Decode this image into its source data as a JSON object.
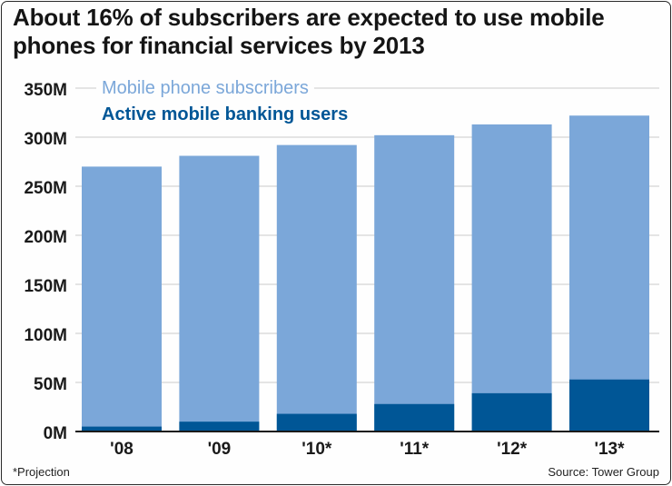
{
  "title": "About 16% of subscribers are expected to use mobile phones for financial services by 2013",
  "footnote": "*Projection",
  "source": "Source: Tower Group",
  "colors": {
    "subscribers": "#7ba7d9",
    "banking": "#005696",
    "gridline": "#c9c9c9",
    "text": "#1a1a1a"
  },
  "chart_data": {
    "type": "bar",
    "stacking": "overlaid",
    "categories": [
      "'08",
      "'09",
      "'10*",
      "'11*",
      "'12*",
      "'13*"
    ],
    "series": [
      {
        "name": "Mobile phone subscribers",
        "values": [
          270,
          281,
          292,
          302,
          313,
          322
        ]
      },
      {
        "name": "Active mobile banking users",
        "values": [
          5,
          10,
          18,
          28,
          39,
          53
        ]
      }
    ],
    "ylim": [
      0,
      350
    ],
    "yticks": [
      0,
      50,
      100,
      150,
      200,
      250,
      300,
      350
    ],
    "ytick_labels": [
      "0M",
      "50M",
      "100M",
      "150M",
      "200M",
      "250M",
      "300M",
      "350M"
    ],
    "grid": true,
    "legend_position": "top-left"
  }
}
